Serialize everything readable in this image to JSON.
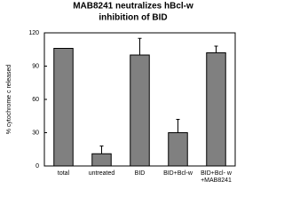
{
  "chart_data": {
    "type": "bar",
    "title": [
      "MAB8241 neutralizes hBcl-w",
      "inhibition of BID"
    ],
    "y_label": "% cytochrome c released",
    "categories": [
      "total",
      "untreated",
      "BID",
      "BID+Bcl-w",
      "BID+Bcl- w\n+MAB8241"
    ],
    "values": [
      106,
      11,
      100,
      30,
      102
    ],
    "errors": [
      null,
      7,
      15,
      12,
      6
    ],
    "color": "#808080",
    "ylim": [
      0,
      120
    ],
    "yticks": [
      0,
      30,
      60,
      90,
      120
    ]
  }
}
